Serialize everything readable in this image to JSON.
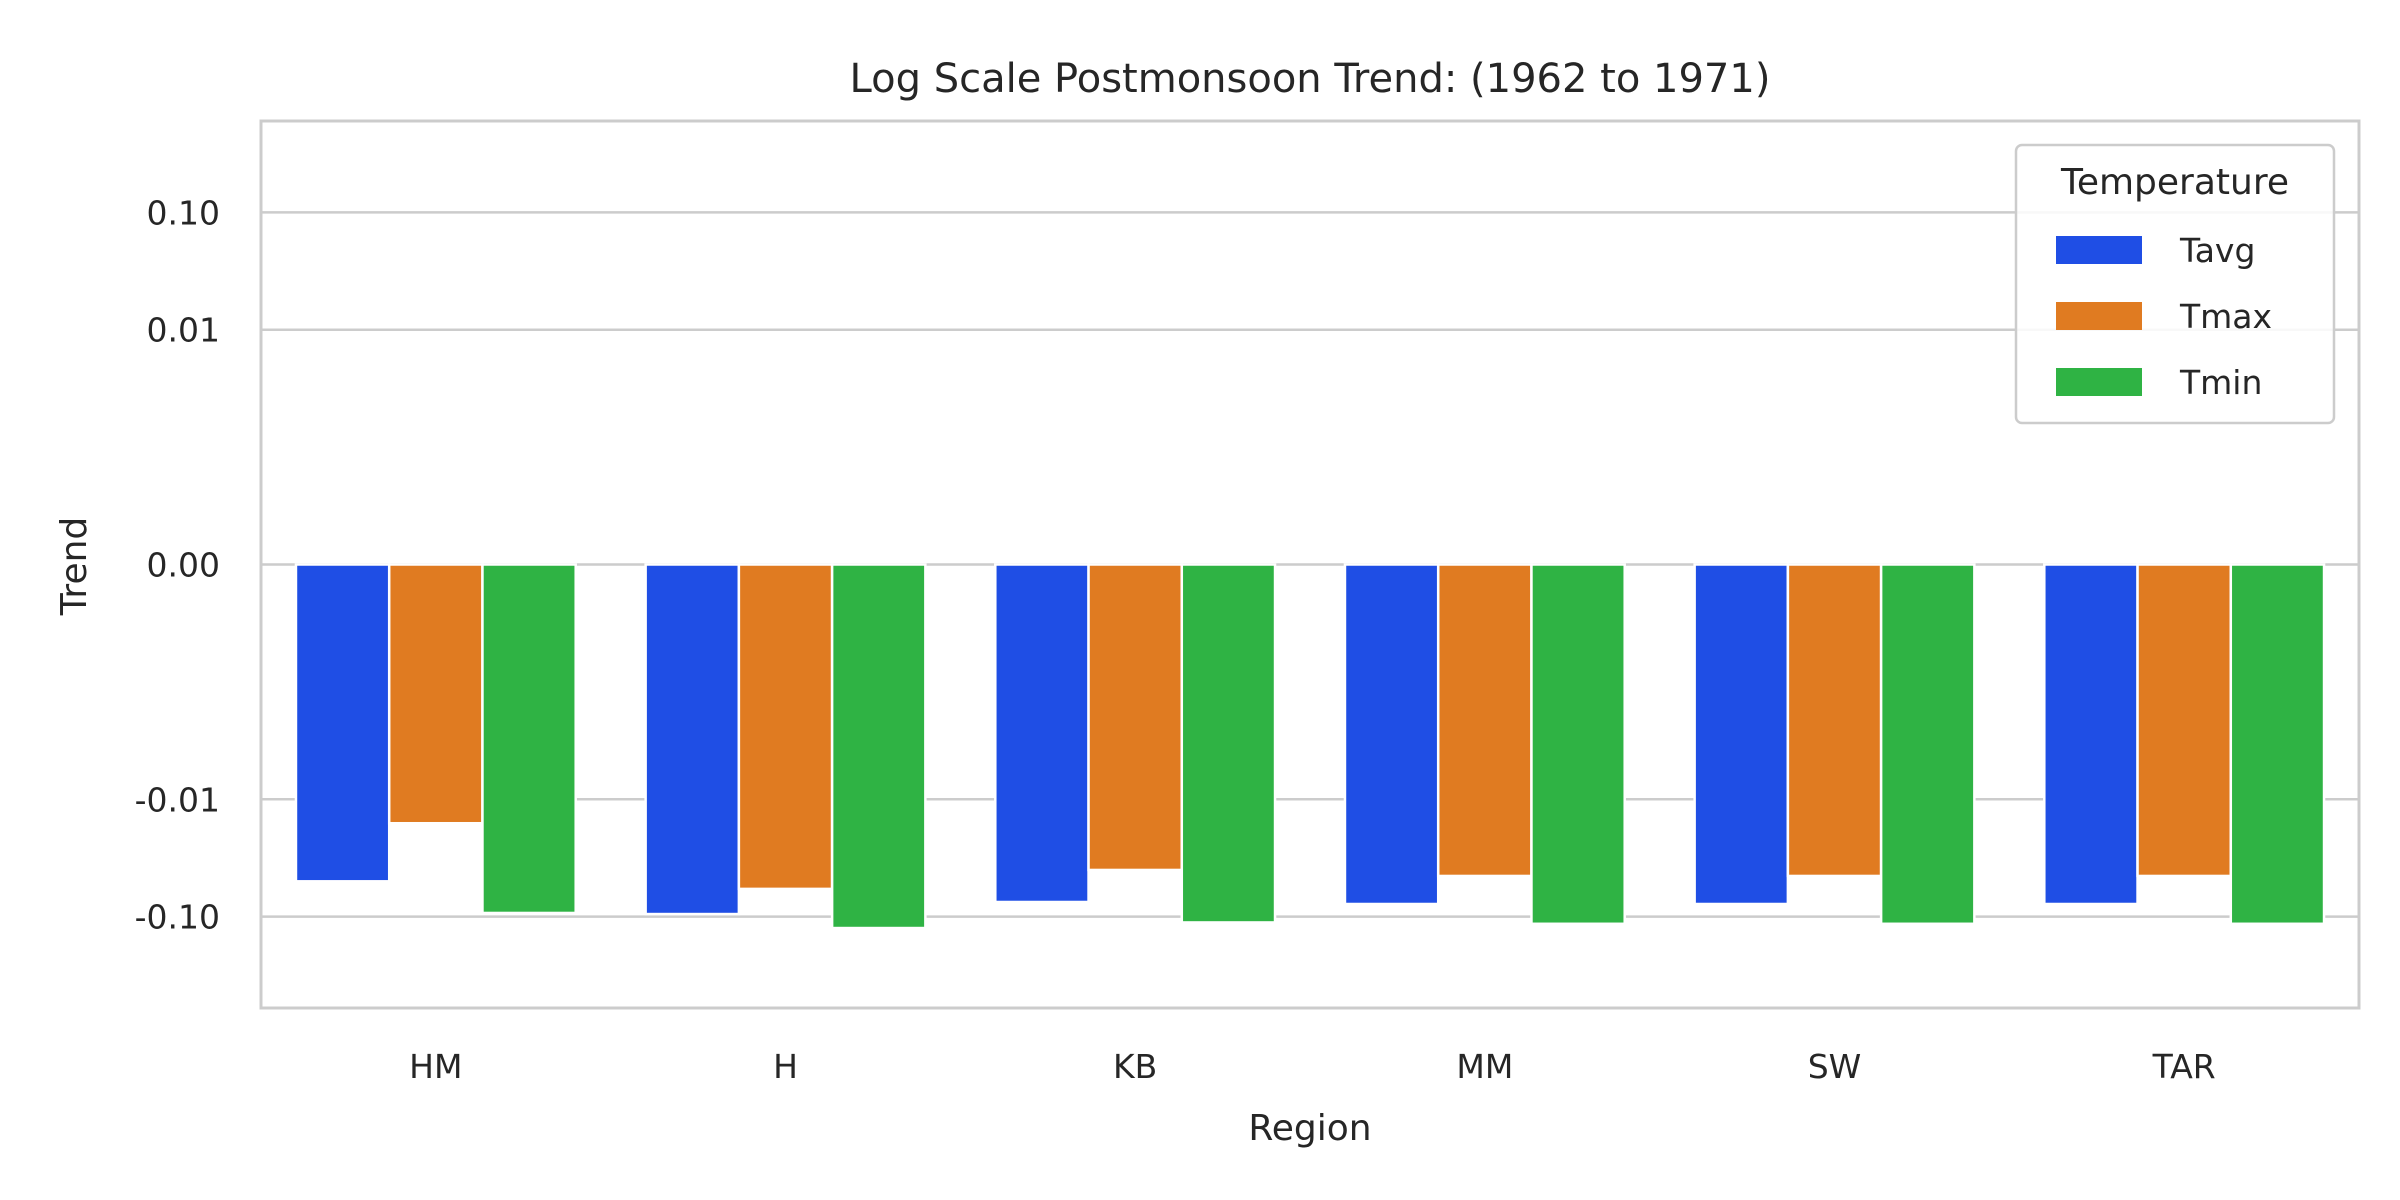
{
  "chart_data": {
    "type": "bar",
    "title": "Log Scale Postmonsoon Trend: (1962 to 1971)",
    "xlabel": "Region",
    "ylabel": "Trend",
    "y_scale": "symlog",
    "symlog_linthresh": 0.001,
    "ylim": [
      -0.6,
      0.6
    ],
    "yticks": [
      -0.1,
      -0.01,
      0.0,
      0.01,
      0.1
    ],
    "ytick_labels": [
      "-0.10",
      "-0.01",
      "0.00",
      "0.01",
      "0.10"
    ],
    "grid": true,
    "legend_position": "top-right",
    "legend_title": "Temperature",
    "categories": [
      "HM",
      "H",
      "KB",
      "MM",
      "SW",
      "TAR"
    ],
    "series": [
      {
        "name": "Tavg",
        "color": "#1f4ee5",
        "values": [
          -0.05,
          -0.095,
          -0.075,
          -0.078,
          -0.078,
          -0.078
        ]
      },
      {
        "name": "Tmax",
        "color": "#e07b21",
        "values": [
          -0.016,
          -0.058,
          -0.04,
          -0.045,
          -0.045,
          -0.045
        ]
      },
      {
        "name": "Tmin",
        "color": "#2fb344",
        "values": [
          -0.093,
          -0.125,
          -0.112,
          -0.115,
          -0.115,
          -0.115
        ]
      }
    ]
  }
}
